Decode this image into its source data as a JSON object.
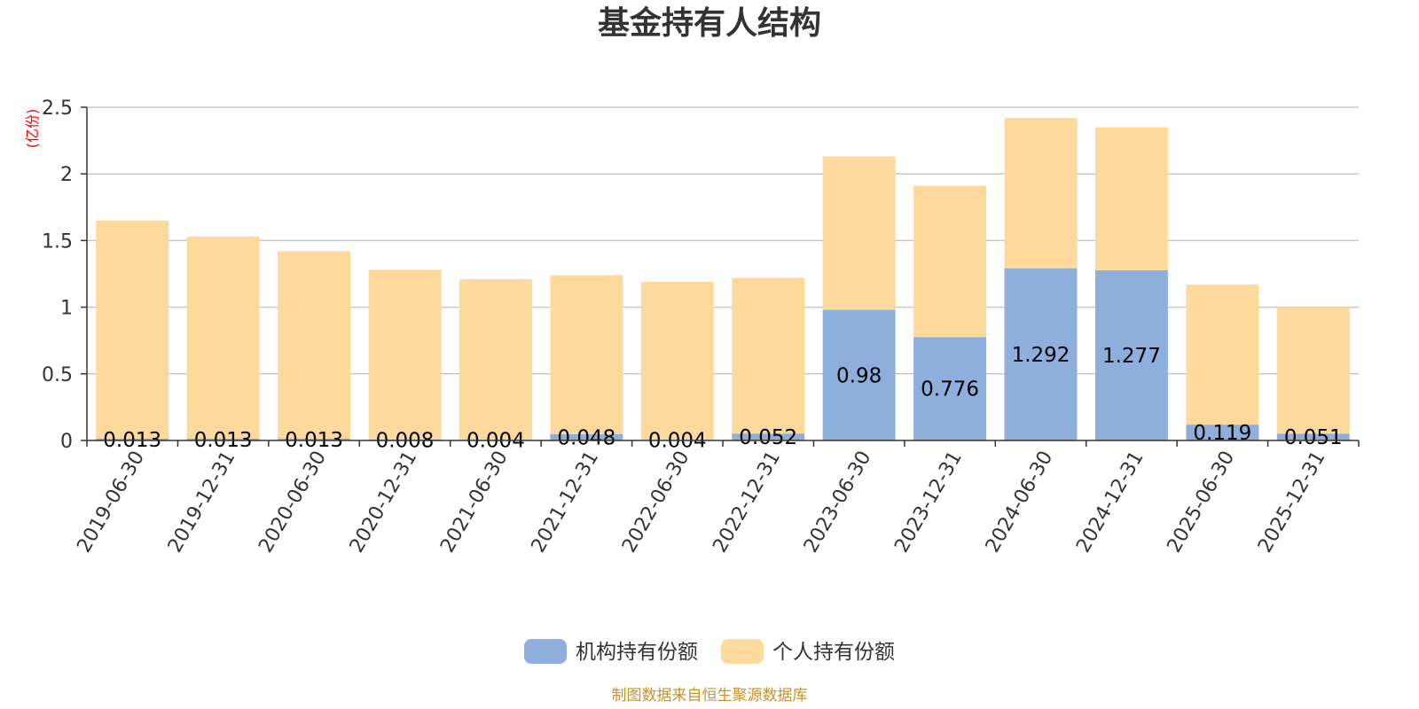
{
  "chart_data": {
    "type": "bar",
    "stacked": true,
    "title": "基金持有人结构",
    "unit_label": "(亿份)",
    "categories": [
      "2019-06-30",
      "2019-12-31",
      "2020-06-30",
      "2020-12-31",
      "2021-06-30",
      "2021-12-31",
      "2022-06-30",
      "2022-12-31",
      "2023-06-30",
      "2023-12-31",
      "2024-06-30",
      "2024-12-31",
      "2025-06-30",
      "2025-12-31"
    ],
    "series": [
      {
        "name": "机构持有份额",
        "color": "#8eaedb",
        "values": [
          0.013,
          0.013,
          0.013,
          0.008,
          0.004,
          0.048,
          0.004,
          0.052,
          0.98,
          0.776,
          1.292,
          1.277,
          0.119,
          0.051
        ],
        "labels": [
          "0.013",
          "0.013",
          "0.013",
          "0.008",
          "0.004",
          "0.048",
          "0.004",
          "0.052",
          "0.98",
          "0.776",
          "1.292",
          "1.277",
          "0.119",
          "0.051"
        ]
      },
      {
        "name": "个人持有份额",
        "color": "#fdd99c",
        "values": [
          1.637,
          1.517,
          1.407,
          1.272,
          1.206,
          1.192,
          1.186,
          1.168,
          1.15,
          1.134,
          1.128,
          1.073,
          1.051,
          0.949
        ]
      }
    ],
    "ylim": [
      0,
      2.5
    ],
    "yticks": [
      0,
      0.5,
      1,
      1.5,
      2,
      2.5
    ],
    "ytick_labels": [
      "0",
      "0.5",
      "1",
      "1.5",
      "2",
      "2.5"
    ],
    "grid": true,
    "legend_position": "bottom-center",
    "source_note": "制图数据来自恒生聚源数据库"
  }
}
